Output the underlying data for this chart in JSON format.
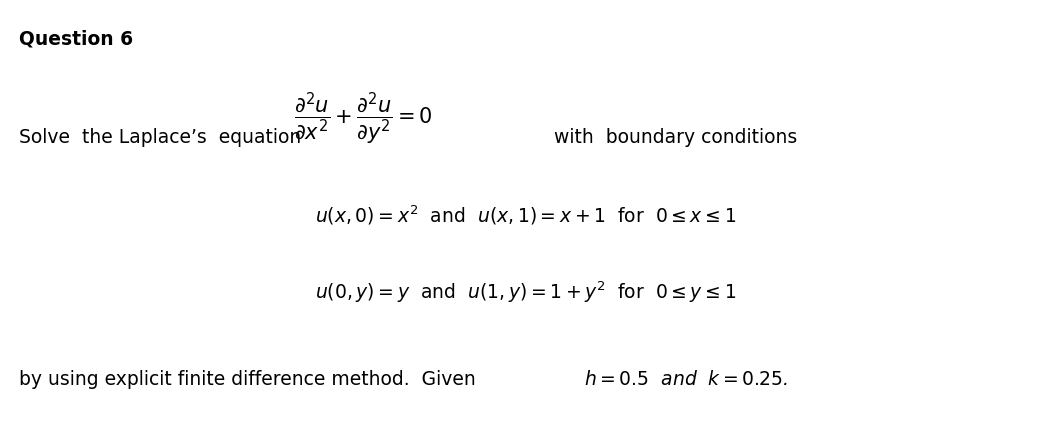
{
  "background_color": "#ffffff",
  "title": "Question 6",
  "title_fontsize": 13.5,
  "title_fontweight": "bold",
  "line1_left": "Solve  the Laplace’s  equation ",
  "line1_eq": "$\\dfrac{\\partial^2 u}{\\partial x^2} + \\dfrac{\\partial^2 u}{\\partial y^2} = 0$",
  "line1_right": "  with  boundary conditions",
  "line2": "$u(x, 0) = x^2$  and  $u(x, 1) = x + 1$  for  $0 \\leq x \\leq 1$",
  "line3": "$u(0, y) = y$  and  $u(1, y) = 1 + y^2$  for  $0 \\leq y \\leq 1$",
  "line4_plain": "by using explicit finite difference method.  Given ",
  "line4_eq": "$h = 0.5$  and  $k = 0.25$.",
  "text_color": "#000000",
  "brown_color": "#8B4000",
  "main_fontsize": 13.5,
  "eq_fontsize": 13.5
}
